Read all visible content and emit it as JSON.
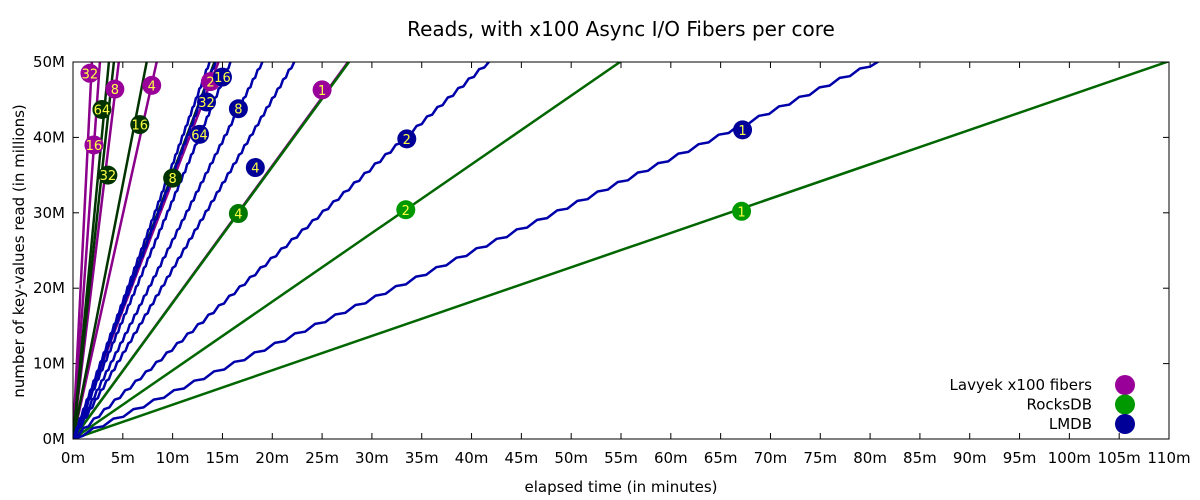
{
  "chart_data": {
    "type": "line",
    "title": "Reads, with x100 Async I/O Fibers per core",
    "xlabel": "elapsed time (in minutes)",
    "ylabel": "number of key-values read (in millions)",
    "xlim": [
      0,
      110
    ],
    "ylim": [
      0,
      50
    ],
    "x_ticks": [
      {
        "v": 0,
        "label": "0m"
      },
      {
        "v": 5,
        "label": "5m"
      },
      {
        "v": 10,
        "label": "10m"
      },
      {
        "v": 15,
        "label": "15m"
      },
      {
        "v": 20,
        "label": "20m"
      },
      {
        "v": 25,
        "label": "25m"
      },
      {
        "v": 30,
        "label": "30m"
      },
      {
        "v": 35,
        "label": "35m"
      },
      {
        "v": 40,
        "label": "40m"
      },
      {
        "v": 45,
        "label": "45m"
      },
      {
        "v": 50,
        "label": "50m"
      },
      {
        "v": 55,
        "label": "55m"
      },
      {
        "v": 60,
        "label": "60m"
      },
      {
        "v": 65,
        "label": "65m"
      },
      {
        "v": 70,
        "label": "70m"
      },
      {
        "v": 75,
        "label": "75m"
      },
      {
        "v": 80,
        "label": "80m"
      },
      {
        "v": 85,
        "label": "85m"
      },
      {
        "v": 90,
        "label": "90m"
      },
      {
        "v": 95,
        "label": "95m"
      },
      {
        "v": 100,
        "label": "100m"
      },
      {
        "v": 105,
        "label": "105m"
      },
      {
        "v": 110,
        "label": "110m"
      }
    ],
    "y_ticks": [
      {
        "v": 0,
        "label": "0M"
      },
      {
        "v": 10,
        "label": "10M"
      },
      {
        "v": 20,
        "label": "20M"
      },
      {
        "v": 30,
        "label": "30M"
      },
      {
        "v": 40,
        "label": "40M"
      },
      {
        "v": 50,
        "label": "50M"
      }
    ],
    "legend": [
      {
        "name": "Lavyek x100 fibers",
        "color": "#990099"
      },
      {
        "name": "RocksDB",
        "color": "#009900"
      },
      {
        "name": "LMDB",
        "color": "#000099"
      }
    ],
    "legend_position": "bottom-right",
    "series": [
      {
        "group": "Lavyek x100 fibers",
        "line_color": "#8b008b",
        "marker_color": "#990099",
        "end_x": 27.6,
        "end_y": 50,
        "wobble": false,
        "marker": {
          "label": "1",
          "x": 25.0,
          "y": 46.3
        }
      },
      {
        "group": "Lavyek x100 fibers",
        "line_color": "#8b008b",
        "marker_color": "#990099",
        "end_x": 14.6,
        "end_y": 50,
        "wobble": false,
        "marker": {
          "label": "2",
          "x": 13.8,
          "y": 47.4
        }
      },
      {
        "group": "Lavyek x100 fibers",
        "line_color": "#8b008b",
        "marker_color": "#990099",
        "end_x": 8.4,
        "end_y": 50,
        "wobble": false,
        "marker": {
          "label": "4",
          "x": 7.9,
          "y": 46.9
        }
      },
      {
        "group": "Lavyek x100 fibers",
        "line_color": "#8b008b",
        "marker_color": "#990099",
        "end_x": 4.6,
        "end_y": 50,
        "wobble": false,
        "marker": {
          "label": "8",
          "x": 4.2,
          "y": 46.4
        }
      },
      {
        "group": "Lavyek x100 fibers",
        "line_color": "#8b008b",
        "marker_color": "#990099",
        "end_x": 2.7,
        "end_y": 50,
        "wobble": false,
        "marker": {
          "label": "16",
          "x": 2.1,
          "y": 39.0
        }
      },
      {
        "group": "Lavyek x100 fibers",
        "line_color": "#8b008b",
        "marker_color": "#990099",
        "end_x": 1.9,
        "end_y": 50,
        "wobble": false,
        "marker": {
          "label": "32",
          "x": 1.7,
          "y": 48.5
        }
      },
      {
        "group": "RocksDB",
        "line_color": "#006600",
        "marker_color": "#009900",
        "end_x": 110,
        "end_y": 50.1,
        "wobble": false,
        "marker": {
          "label": "1",
          "x": 67.1,
          "y": 30.2
        }
      },
      {
        "group": "RocksDB",
        "line_color": "#006600",
        "marker_color": "#009900",
        "end_x": 54.9,
        "end_y": 50,
        "wobble": false,
        "marker": {
          "label": "2",
          "x": 33.4,
          "y": 30.4
        }
      },
      {
        "group": "RocksDB",
        "line_color": "#006600",
        "marker_color": "#007700",
        "end_x": 27.7,
        "end_y": 50,
        "wobble": false,
        "marker": {
          "label": "4",
          "x": 16.6,
          "y": 29.9
        }
      },
      {
        "group": "RocksDB",
        "line_color": "#003300",
        "marker_color": "#003300",
        "end_x": 14.2,
        "end_y": 50,
        "wobble": false,
        "marker": {
          "label": "8",
          "x": 10.0,
          "y": 34.6
        }
      },
      {
        "group": "RocksDB",
        "line_color": "#003300",
        "marker_color": "#003300",
        "end_x": 7.4,
        "end_y": 50,
        "wobble": false,
        "marker": {
          "label": "16",
          "x": 6.7,
          "y": 41.7
        }
      },
      {
        "group": "RocksDB",
        "line_color": "#003300",
        "marker_color": "#003300",
        "end_x": 4.1,
        "end_y": 50,
        "wobble": false,
        "marker": {
          "label": "32",
          "x": 3.5,
          "y": 35.0
        }
      },
      {
        "group": "RocksDB",
        "line_color": "#003300",
        "marker_color": "#003300",
        "end_x": 3.6,
        "end_y": 50,
        "wobble": false,
        "marker": {
          "label": "64",
          "x": 2.9,
          "y": 43.7
        }
      },
      {
        "group": "LMDB",
        "line_color": "#0000aa",
        "marker_color": "#000099",
        "end_x": 81.0,
        "end_y": 50.2,
        "wobble": true,
        "marker": {
          "label": "1",
          "x": 67.2,
          "y": 41.0
        }
      },
      {
        "group": "LMDB",
        "line_color": "#0000aa",
        "marker_color": "#000099",
        "end_x": 41.8,
        "end_y": 50.1,
        "wobble": true,
        "marker": {
          "label": "2",
          "x": 33.5,
          "y": 39.8
        }
      },
      {
        "group": "LMDB",
        "line_color": "#0000aa",
        "marker_color": "#000099",
        "end_x": 22.2,
        "end_y": 50,
        "wobble": true,
        "marker": {
          "label": "4",
          "x": 18.3,
          "y": 36.0
        }
      },
      {
        "group": "LMDB",
        "line_color": "#0000aa",
        "marker_color": "#000099",
        "end_x": 19.0,
        "end_y": 50,
        "wobble": true,
        "marker": {
          "label": "8",
          "x": 16.6,
          "y": 43.8
        }
      },
      {
        "group": "LMDB",
        "line_color": "#0000aa",
        "marker_color": "#000099",
        "end_x": 15.8,
        "end_y": 50,
        "wobble": true,
        "marker": {
          "label": "16",
          "x": 15.0,
          "y": 48.0
        }
      },
      {
        "group": "LMDB",
        "line_color": "#0000aa",
        "marker_color": "#000099",
        "end_x": 14.3,
        "end_y": 50,
        "wobble": true,
        "marker": {
          "label": "32",
          "x": 13.4,
          "y": 44.7
        }
      },
      {
        "group": "LMDB",
        "line_color": "#0000aa",
        "marker_color": "#000099",
        "end_x": 13.7,
        "end_y": 50,
        "wobble": true,
        "marker": {
          "label": "64",
          "x": 12.7,
          "y": 40.4
        }
      }
    ]
  }
}
